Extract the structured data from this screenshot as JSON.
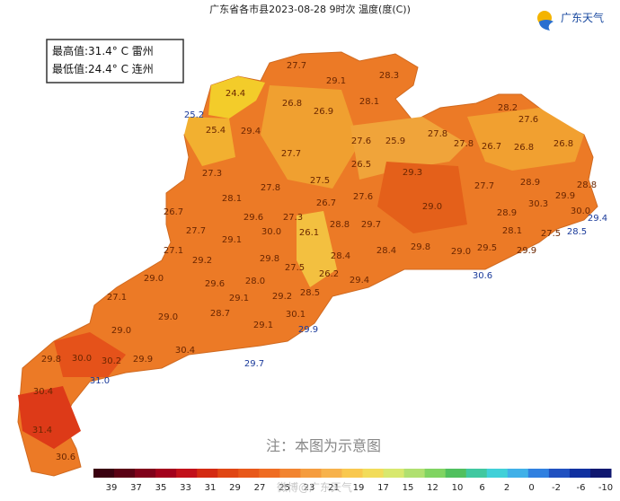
{
  "title": "广东省各市县2023-08-28 9时次 温度(度(C))",
  "stats": [
    "最高值:31.4° C 雷州",
    "最低值:24.4° C 连州"
  ],
  "logo": "广东天气",
  "note": "注：本图为示意图",
  "watermark": "微博@广东天气",
  "labels": [
    "27.7",
    "29.1",
    "28.3",
    "24.4",
    "26.8",
    "26.9",
    "28.1",
    "28.2",
    "27.6",
    "25.2",
    "25.4",
    "29.4",
    "27.6",
    "25.9",
    "27.8",
    "27.8",
    "26.7",
    "26.8",
    "26.8",
    "27.7",
    "26.5",
    "27.3",
    "29.3",
    "27.5",
    "28.9",
    "29.9",
    "28.8",
    "27.8",
    "28.1",
    "26.7",
    "27.6",
    "29.0",
    "27.7",
    "30.3",
    "30.0",
    "29.4",
    "26.7",
    "29.6",
    "27.3",
    "28.9",
    "28.8",
    "29.7",
    "27.7",
    "30.0",
    "26.1",
    "28.1",
    "28.5",
    "27.5",
    "29.1",
    "27.1",
    "29.2",
    "29.8",
    "28.4",
    "28.4",
    "29.8",
    "29.0",
    "29.5",
    "29.9",
    "27.5",
    "26.2",
    "29.4",
    "30.6",
    "29.0",
    "29.6",
    "28.0",
    "28.5",
    "27.1",
    "29.1",
    "29.2",
    "29.0",
    "28.7",
    "30.1",
    "29.1",
    "29.9",
    "29.0",
    "30.4",
    "29.8",
    "30.0",
    "30.2",
    "29.9",
    "29.7",
    "31.0",
    "30.4",
    "31.4",
    "30.6"
  ],
  "legend": [
    39,
    37,
    35,
    33,
    31,
    29,
    27,
    25,
    23,
    21,
    19,
    17,
    15,
    12,
    10,
    6,
    2,
    0,
    -2,
    -6,
    -10
  ]
}
